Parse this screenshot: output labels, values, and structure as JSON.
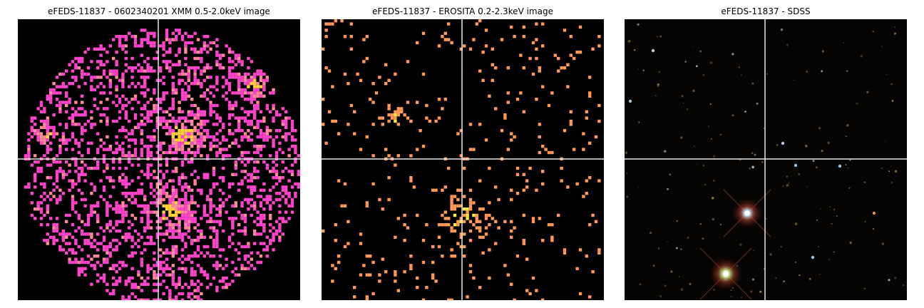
{
  "panels": [
    {
      "title": "eFEDS-11837 - 0602340201 XMM 0.5-2.0keV image"
    },
    {
      "title": "eFEDS-11837 -  EROSITA 0.2-2.3keV image"
    },
    {
      "title": "eFEDS-11837 - SDSS"
    }
  ],
  "colors": {
    "background": "#000000",
    "xmm_low": "#ff44cc",
    "xmm_mid": "#ff8a9a",
    "xmm_high": "#ffd23a",
    "erosita_low": "#ff9955",
    "erosita_high": "#ffe84a",
    "crosshair": "#e8e8e8"
  }
}
